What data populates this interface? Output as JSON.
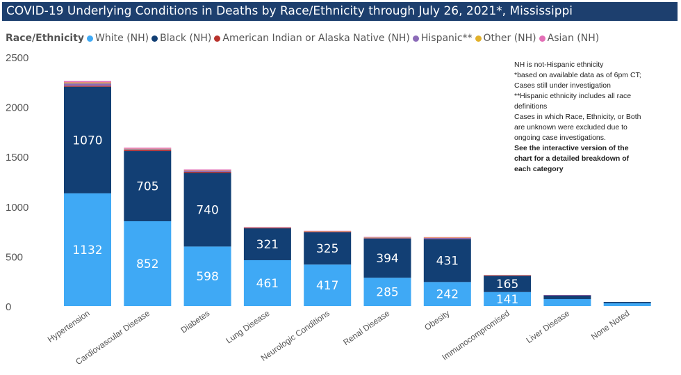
{
  "chart_data": {
    "type": "bar",
    "stacked": true,
    "title": "COVID-19 Underlying Conditions in Deaths by Race/Ethnicity through July 26, 2021*, Mississippi",
    "legend_title": "Race/Ethnicity",
    "legend_position": "top-left",
    "categories": [
      "Hypertension",
      "Cardiovascular Disease",
      "Diabetes",
      "Lung Disease",
      "Neurologic Conditions",
      "Renal Disease",
      "Obesity",
      "Immunocompromised",
      "Liver Disease",
      "None Noted"
    ],
    "series": [
      {
        "name": "White (NH)",
        "color": "#3fa9f5",
        "values": [
          1132,
          852,
          598,
          461,
          417,
          285,
          242,
          141,
          70,
          30
        ],
        "labels": [
          "1132",
          "852",
          "598",
          "461",
          "417",
          "285",
          "242",
          "141",
          "",
          ""
        ]
      },
      {
        "name": "Black (NH)",
        "color": "#123f74",
        "values": [
          1070,
          705,
          740,
          321,
          325,
          394,
          431,
          165,
          40,
          12
        ],
        "labels": [
          "1070",
          "705",
          "740",
          "321",
          "325",
          "394",
          "431",
          "165",
          "",
          ""
        ]
      },
      {
        "name": "American Indian or Alaska Native (NH)",
        "color": "#b8322c",
        "values": [
          10,
          8,
          10,
          2,
          2,
          4,
          2,
          1,
          0,
          0
        ],
        "labels": []
      },
      {
        "name": "Hispanic**",
        "color": "#8c6bb8",
        "values": [
          25,
          10,
          10,
          5,
          5,
          5,
          10,
          3,
          1,
          0
        ],
        "labels": []
      },
      {
        "name": "Other (NH)",
        "color": "#e2b12b",
        "values": [
          8,
          5,
          4,
          2,
          2,
          2,
          3,
          1,
          0,
          0
        ],
        "labels": []
      },
      {
        "name": "Asian (NH)",
        "color": "#e36fb6",
        "values": [
          15,
          10,
          10,
          5,
          5,
          5,
          5,
          2,
          1,
          0
        ],
        "labels": []
      }
    ],
    "ylim": [
      0,
      2500
    ],
    "yticks": [
      0,
      500,
      1000,
      1500,
      2000,
      2500
    ],
    "grid": false,
    "xlabel": "",
    "ylabel": ""
  },
  "notes": {
    "lines": [
      "NH is not-Hispanic ethnicity",
      "*based on available data as of 6pm CT;",
      "Cases still under investigation",
      "**Hispanic ethnicity includes all race",
      "definitions",
      "Cases in which Race, Ethnicity, or Both",
      "are unknown were excluded due to",
      "ongoing case investigations."
    ],
    "emphasis": [
      "See the interactive version of the",
      "chart for a detailed breakdown of",
      "each category"
    ]
  }
}
